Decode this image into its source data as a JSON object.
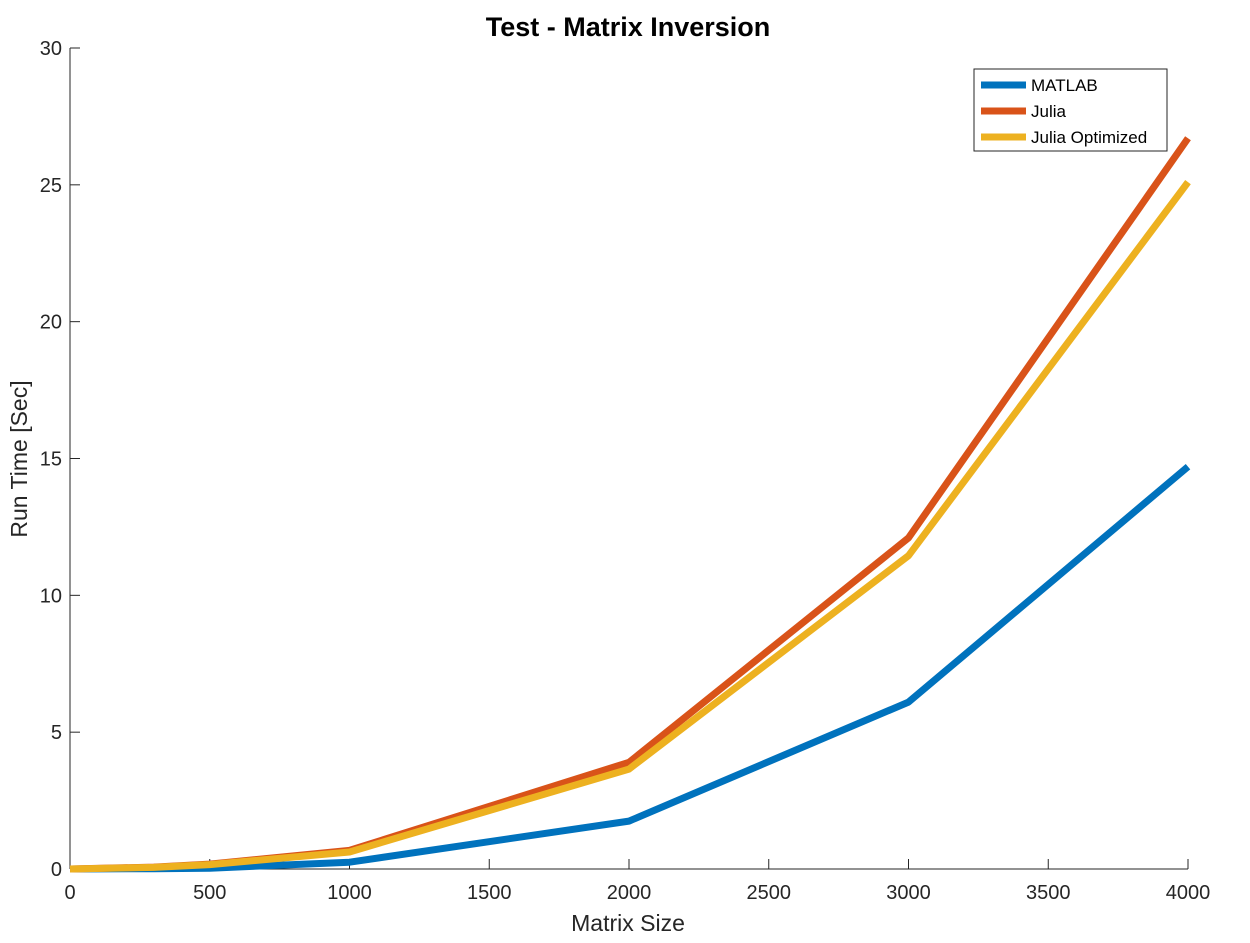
{
  "chart_data": {
    "type": "line",
    "title": "Test - Matrix Inversion",
    "xlabel": "Matrix Size",
    "ylabel": "Run Time  [Sec]",
    "xlim": [
      0,
      4000
    ],
    "ylim": [
      0,
      30
    ],
    "xticks": [
      0,
      500,
      1000,
      1500,
      2000,
      2500,
      3000,
      3500,
      4000
    ],
    "yticks": [
      0,
      5,
      10,
      15,
      20,
      25,
      30
    ],
    "grid": false,
    "legend_position": "top-right",
    "series": [
      {
        "name": "MATLAB",
        "color": "#0072BD",
        "x": [
          0,
          300,
          500,
          1000,
          2000,
          3000,
          4000
        ],
        "y": [
          0.0,
          0.01,
          0.03,
          0.25,
          1.75,
          6.1,
          14.7
        ]
      },
      {
        "name": "Julia",
        "color": "#D95319",
        "x": [
          0,
          300,
          500,
          1000,
          2000,
          3000,
          4000
        ],
        "y": [
          0.0,
          0.07,
          0.18,
          0.68,
          3.9,
          12.1,
          26.7
        ]
      },
      {
        "name": "Julia Optimized",
        "color": "#EDB120",
        "x": [
          0,
          300,
          500,
          1000,
          2000,
          3000,
          4000
        ],
        "y": [
          0.0,
          0.06,
          0.16,
          0.62,
          3.65,
          11.45,
          25.1
        ]
      }
    ]
  }
}
